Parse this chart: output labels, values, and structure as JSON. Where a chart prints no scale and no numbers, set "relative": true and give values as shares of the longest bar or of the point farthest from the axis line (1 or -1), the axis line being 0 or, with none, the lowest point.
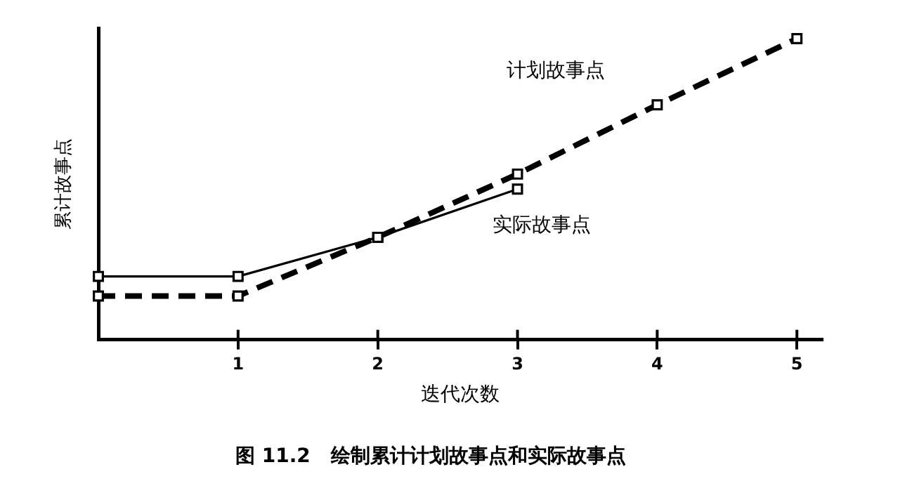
{
  "chart_data": {
    "type": "line",
    "relative": true,
    "xlabel": "迭代次数",
    "ylabel": "累计故事点",
    "xlim": [
      0,
      5.18
    ],
    "xticks": [
      1,
      2,
      3,
      4,
      5
    ],
    "marker": "square",
    "legend": false,
    "series": [
      {
        "name": "计划故事点",
        "color": "#000000",
        "line_style": "dashed",
        "x": [
          0,
          1,
          2,
          3,
          4,
          5
        ],
        "values": [
          0.145,
          0.145,
          0.34,
          0.55,
          0.78,
          1
        ]
      },
      {
        "name": "实际故事点",
        "color": "#000000",
        "line_style": "solid",
        "x": [
          0,
          1,
          2,
          3
        ],
        "values": [
          0.21,
          0.21,
          0.34,
          0.5
        ]
      }
    ],
    "annotations": [
      "图 11.2   绘制累计计划故事点和实际故事点"
    ]
  }
}
